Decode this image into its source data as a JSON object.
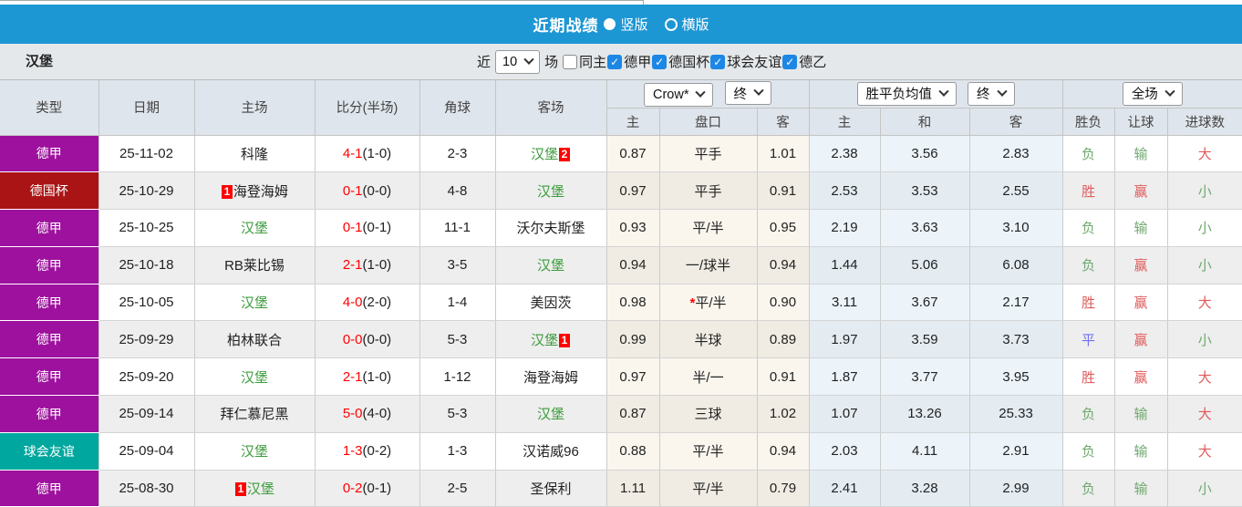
{
  "title_bar": {
    "title": "近期战绩",
    "radios": [
      {
        "label": "竖版",
        "selected": true
      },
      {
        "label": "横版",
        "selected": false
      }
    ]
  },
  "filter_bar": {
    "team": "汉堡",
    "near_label": "近",
    "near_value": "10",
    "matches_label": "场",
    "same_home": {
      "label": "同主",
      "checked": false
    },
    "leagues": [
      {
        "label": "德甲",
        "checked": true
      },
      {
        "label": "德国杯",
        "checked": true
      },
      {
        "label": "球会友谊",
        "checked": true
      },
      {
        "label": "德乙",
        "checked": true
      }
    ]
  },
  "table": {
    "main_headers": [
      "类型",
      "日期",
      "主场",
      "比分(半场)",
      "角球",
      "客场"
    ],
    "sub_headers": [
      "主",
      "盘口",
      "客",
      "主",
      "和",
      "客",
      "胜负",
      "让球",
      "进球数"
    ],
    "selects": [
      {
        "value": "Crow*"
      },
      {
        "value": "终"
      },
      {
        "value": "胜平负均值"
      },
      {
        "value": "终"
      },
      {
        "value": "全场"
      }
    ],
    "rows": [
      {
        "league": "德甲",
        "date": "25-11-02",
        "home": {
          "name": "科隆"
        },
        "score_ft": "4-1",
        "score_ht": "(1-0)",
        "corners": "2-3",
        "away": {
          "name": "汉堡",
          "green": true,
          "badge": "2",
          "badge_pos": "after"
        },
        "odds": [
          "0.87",
          "平手",
          "1.01"
        ],
        "handicap_star": false,
        "avg": [
          "2.38",
          "3.56",
          "2.83"
        ],
        "results": [
          {
            "text": "负",
            "color": "green"
          },
          {
            "text": "输",
            "color": "green"
          },
          {
            "text": "大",
            "color": "red"
          }
        ]
      },
      {
        "league": "德国杯",
        "date": "25-10-29",
        "home": {
          "name": "海登海姆",
          "badge": "1",
          "badge_pos": "before"
        },
        "score_ft": "0-1",
        "score_ht": "(0-0)",
        "corners": "4-8",
        "away": {
          "name": "汉堡",
          "green": true
        },
        "odds": [
          "0.97",
          "平手",
          "0.91"
        ],
        "handicap_star": false,
        "avg": [
          "2.53",
          "3.53",
          "2.55"
        ],
        "results": [
          {
            "text": "胜",
            "color": "red"
          },
          {
            "text": "赢",
            "color": "red"
          },
          {
            "text": "小",
            "color": "green"
          }
        ]
      },
      {
        "league": "德甲",
        "date": "25-10-25",
        "home": {
          "name": "汉堡",
          "green": true
        },
        "score_ft": "0-1",
        "score_ht": "(0-1)",
        "corners": "11-1",
        "away": {
          "name": "沃尔夫斯堡"
        },
        "odds": [
          "0.93",
          "平/半",
          "0.95"
        ],
        "handicap_star": false,
        "avg": [
          "2.19",
          "3.63",
          "3.10"
        ],
        "results": [
          {
            "text": "负",
            "color": "green"
          },
          {
            "text": "输",
            "color": "green"
          },
          {
            "text": "小",
            "color": "green"
          }
        ]
      },
      {
        "league": "德甲",
        "date": "25-10-18",
        "home": {
          "name": "RB莱比锡"
        },
        "score_ft": "2-1",
        "score_ht": "(1-0)",
        "corners": "3-5",
        "away": {
          "name": "汉堡",
          "green": true
        },
        "odds": [
          "0.94",
          "一/球半",
          "0.94"
        ],
        "handicap_star": false,
        "avg": [
          "1.44",
          "5.06",
          "6.08"
        ],
        "results": [
          {
            "text": "负",
            "color": "green"
          },
          {
            "text": "赢",
            "color": "red"
          },
          {
            "text": "小",
            "color": "green"
          }
        ]
      },
      {
        "league": "德甲",
        "date": "25-10-05",
        "home": {
          "name": "汉堡",
          "green": true
        },
        "score_ft": "4-0",
        "score_ht": "(2-0)",
        "corners": "1-4",
        "away": {
          "name": "美因茨"
        },
        "odds": [
          "0.98",
          "平/半",
          "0.90"
        ],
        "handicap_star": true,
        "avg": [
          "3.11",
          "3.67",
          "2.17"
        ],
        "results": [
          {
            "text": "胜",
            "color": "red"
          },
          {
            "text": "赢",
            "color": "red"
          },
          {
            "text": "大",
            "color": "red"
          }
        ]
      },
      {
        "league": "德甲",
        "date": "25-09-29",
        "home": {
          "name": "柏林联合"
        },
        "score_ft": "0-0",
        "score_ht": "(0-0)",
        "corners": "5-3",
        "away": {
          "name": "汉堡",
          "green": true,
          "badge": "1",
          "badge_pos": "after"
        },
        "odds": [
          "0.99",
          "半球",
          "0.89"
        ],
        "handicap_star": false,
        "avg": [
          "1.97",
          "3.59",
          "3.73"
        ],
        "results": [
          {
            "text": "平",
            "color": "blue"
          },
          {
            "text": "赢",
            "color": "red"
          },
          {
            "text": "小",
            "color": "green"
          }
        ]
      },
      {
        "league": "德甲",
        "date": "25-09-20",
        "home": {
          "name": "汉堡",
          "green": true
        },
        "score_ft": "2-1",
        "score_ht": "(1-0)",
        "corners": "1-12",
        "away": {
          "name": "海登海姆"
        },
        "odds": [
          "0.97",
          "半/一",
          "0.91"
        ],
        "handicap_star": false,
        "avg": [
          "1.87",
          "3.77",
          "3.95"
        ],
        "results": [
          {
            "text": "胜",
            "color": "red"
          },
          {
            "text": "赢",
            "color": "red"
          },
          {
            "text": "大",
            "color": "red"
          }
        ]
      },
      {
        "league": "德甲",
        "date": "25-09-14",
        "home": {
          "name": "拜仁慕尼黑"
        },
        "score_ft": "5-0",
        "score_ht": "(4-0)",
        "corners": "5-3",
        "away": {
          "name": "汉堡",
          "green": true
        },
        "odds": [
          "0.87",
          "三球",
          "1.02"
        ],
        "handicap_star": false,
        "avg": [
          "1.07",
          "13.26",
          "25.33"
        ],
        "results": [
          {
            "text": "负",
            "color": "green"
          },
          {
            "text": "输",
            "color": "green"
          },
          {
            "text": "大",
            "color": "red"
          }
        ]
      },
      {
        "league": "球会友谊",
        "date": "25-09-04",
        "home": {
          "name": "汉堡",
          "green": true
        },
        "score_ft": "1-3",
        "score_ht": "(0-2)",
        "corners": "1-3",
        "away": {
          "name": "汉诺威96"
        },
        "odds": [
          "0.88",
          "平/半",
          "0.94"
        ],
        "handicap_star": false,
        "avg": [
          "2.03",
          "4.11",
          "2.91"
        ],
        "results": [
          {
            "text": "负",
            "color": "green"
          },
          {
            "text": "输",
            "color": "green"
          },
          {
            "text": "大",
            "color": "red"
          }
        ]
      },
      {
        "league": "德甲",
        "date": "25-08-30",
        "home": {
          "name": "汉堡",
          "green": true,
          "badge": "1",
          "badge_pos": "before"
        },
        "score_ft": "0-2",
        "score_ht": "(0-1)",
        "corners": "2-5",
        "away": {
          "name": "圣保利"
        },
        "odds": [
          "1.11",
          "平/半",
          "0.79"
        ],
        "handicap_star": false,
        "avg": [
          "2.41",
          "3.28",
          "2.99"
        ],
        "results": [
          {
            "text": "负",
            "color": "green"
          },
          {
            "text": "输",
            "color": "green"
          },
          {
            "text": "小",
            "color": "green"
          }
        ]
      }
    ]
  },
  "colors": {
    "title_bar_bg": "#1d96d4",
    "league": {
      "德甲": "#9e119e",
      "德国杯": "#aa1414",
      "球会友谊": "#00a79e"
    },
    "result": {
      "red": "#e05b5b",
      "green": "#6fa96f",
      "blue": "#7070f0"
    },
    "score_red": "#fe0000",
    "team_highlight": "#3c9b3c",
    "badge_bg": "#fe0000",
    "checkbox_blue": "#1c87e5"
  }
}
